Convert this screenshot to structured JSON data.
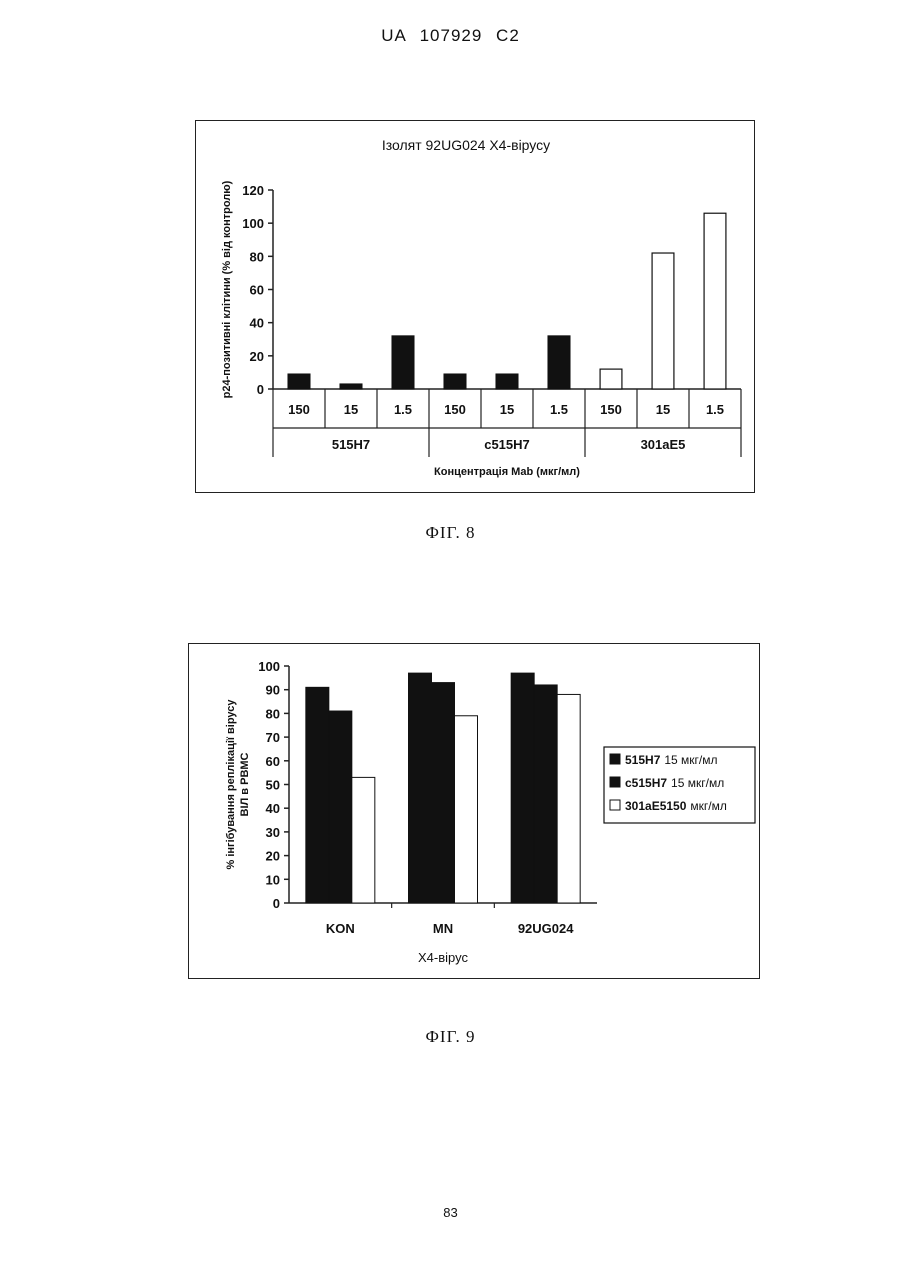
{
  "header": {
    "text": "UA   107929   C2"
  },
  "figures": [
    {
      "caption": "ФІГ. 8"
    },
    {
      "caption": "ФІГ. 9"
    }
  ],
  "page_number": "83",
  "colors": {
    "dark_bar": "#111111",
    "light_bar": "#ffffff",
    "axis": "#222222"
  },
  "chart_data": [
    {
      "type": "bar",
      "title": "Ізолят 92UG024 Х4-вірусу",
      "ylabel": "p24-позитивні клітини (% від контролю)",
      "xlabel": "Концентрація Mab (мкг/мл)",
      "ylim": [
        0,
        120
      ],
      "yticks": [
        "0",
        "20",
        "40",
        "60",
        "80",
        "100",
        "120"
      ],
      "groups": [
        {
          "name": "515H7",
          "style": "dark",
          "categories": [
            "150",
            "15",
            "1.5"
          ],
          "values": [
            9,
            3,
            32
          ]
        },
        {
          "name": "c515H7",
          "style": "dark",
          "categories": [
            "150",
            "15",
            "1.5"
          ],
          "values": [
            9,
            9,
            32
          ]
        },
        {
          "name": "301aE5",
          "style": "light",
          "categories": [
            "150",
            "15",
            "1.5"
          ],
          "values": [
            12,
            82,
            106
          ]
        }
      ]
    },
    {
      "type": "bar",
      "title": "",
      "ylabel": "% інгібування реплікації вірусу ВІЛ в PBMC",
      "xlabel": "Х4-вірус",
      "ylim": [
        0,
        100
      ],
      "yticks": [
        "0",
        "10",
        "20",
        "30",
        "40",
        "50",
        "60",
        "70",
        "80",
        "90",
        "100"
      ],
      "categories": [
        "KON",
        "MN",
        "92UG024"
      ],
      "legend_position": "right",
      "series": [
        {
          "name": "515H7",
          "unit": "15 мкг/мл",
          "style": "dark",
          "values": [
            91,
            97,
            97
          ]
        },
        {
          "name": "c515H7",
          "unit": "15 мкг/мл",
          "style": "dark",
          "values": [
            81,
            93,
            92
          ]
        },
        {
          "name": "301aE5150",
          "unit": "мкг/мл",
          "style": "light",
          "values": [
            53,
            79,
            88
          ]
        }
      ]
    }
  ]
}
